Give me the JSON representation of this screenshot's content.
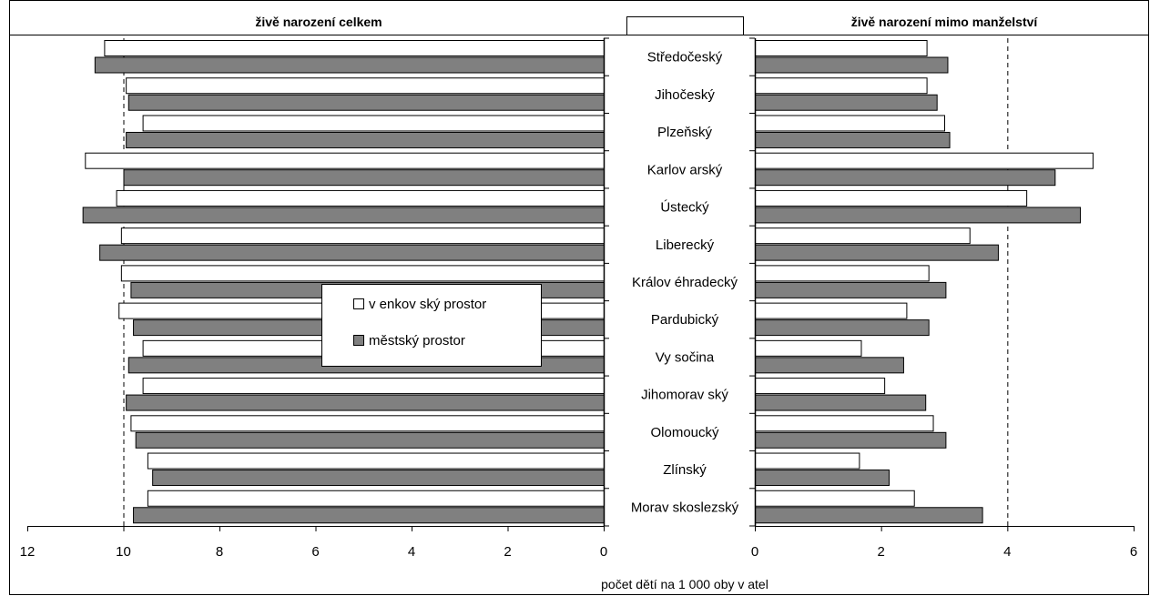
{
  "chart_data": [
    {
      "type": "bar",
      "orientation": "horizontal",
      "x_direction": "reversed",
      "title": "živě narození celkem",
      "categories": [
        "Středočeský",
        "Jihočeský",
        "Plzeňský",
        "Karlovarský",
        "Ústecký",
        "Liberecký",
        "Královéhradecký",
        "Pardubický",
        "Vysočina",
        "Jihomoravský",
        "Olomoucký",
        "Zlínský",
        "Moravskoslezský"
      ],
      "category_labels": [
        "Středočeský",
        "Jihočeský",
        "Plzeňský",
        "Karlov arský",
        "Ústecký",
        "Liberecký",
        "Králov éhradecký",
        "Pardubický",
        "Vy sočina",
        "Jihomorav ský",
        "Olomoucký",
        "Zlínský",
        "Morav skoslezský"
      ],
      "xlim": [
        0,
        12
      ],
      "ticks": [
        "0",
        "2",
        "4",
        "6",
        "8",
        "10",
        "12"
      ],
      "reference_line": 10,
      "series": [
        {
          "name": "venkovský prostor",
          "color": "#ffffff",
          "values": [
            10.4,
            9.95,
            9.6,
            10.8,
            10.15,
            10.05,
            10.05,
            10.1,
            9.6,
            9.6,
            9.85,
            9.5,
            9.5
          ]
        },
        {
          "name": "městský prostor",
          "color": "#808080",
          "values": [
            10.6,
            9.9,
            9.95,
            10.0,
            10.85,
            10.5,
            9.85,
            9.8,
            9.9,
            9.95,
            9.75,
            9.4,
            9.8
          ]
        }
      ]
    },
    {
      "type": "bar",
      "orientation": "horizontal",
      "title": "živě narození mimo manželství",
      "categories": [
        "Středočeský",
        "Jihočeský",
        "Plzeňský",
        "Karlovarský",
        "Ústecký",
        "Liberecký",
        "Královéhradecký",
        "Pardubický",
        "Vysočina",
        "Jihomoravský",
        "Olomoucký",
        "Zlínský",
        "Moravskoslezský"
      ],
      "xlim": [
        0,
        6
      ],
      "ticks": [
        "0",
        "2",
        "4",
        "6"
      ],
      "reference_line": 4,
      "series": [
        {
          "name": "venkovský prostor",
          "color": "#ffffff",
          "values": [
            2.72,
            2.72,
            3.0,
            5.35,
            4.3,
            3.4,
            2.75,
            2.4,
            1.68,
            2.05,
            2.82,
            1.65,
            2.52
          ]
        },
        {
          "name": "městský prostor",
          "color": "#808080",
          "values": [
            3.05,
            2.88,
            3.08,
            4.75,
            5.15,
            3.85,
            3.02,
            2.75,
            2.35,
            2.7,
            3.02,
            2.12,
            3.6
          ]
        }
      ]
    }
  ],
  "legend": {
    "items": [
      {
        "label": "v enkov ský prostor",
        "color": "#ffffff"
      },
      {
        "label": "městský prostor",
        "color": "#808080"
      }
    ]
  },
  "xlabel": "počet dětí na 1 000 oby v atel"
}
